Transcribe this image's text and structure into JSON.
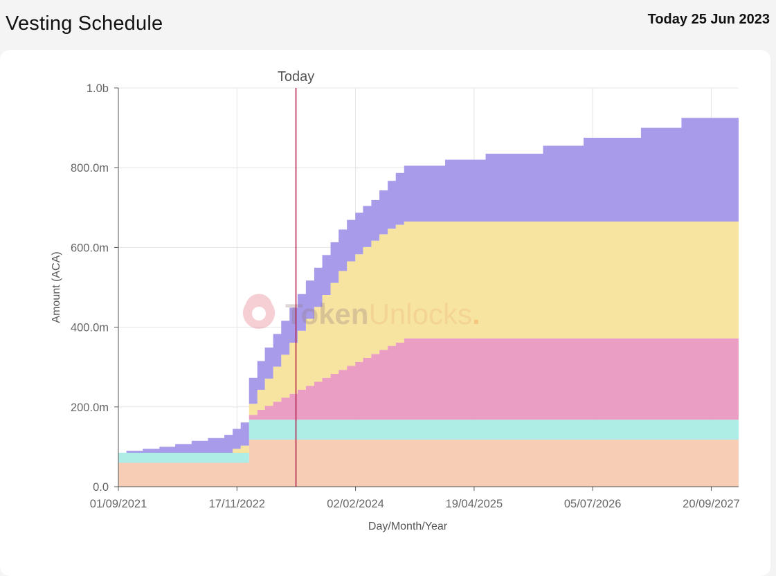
{
  "header": {
    "title": "Vesting Schedule",
    "today_prefix": "Today",
    "today_date": "25 Jun 2023"
  },
  "watermark": {
    "part1": "Token",
    "part2": "Unlocks",
    "dot": "."
  },
  "chart_data": {
    "type": "area",
    "stacked": true,
    "step": true,
    "title": "",
    "xlabel": "Day/Month/Year",
    "ylabel": "Amount (ACA)",
    "x_axis_type": "date",
    "xlim": [
      "2021-09-01",
      "2027-12-31"
    ],
    "ylim": [
      0,
      1000000000
    ],
    "x_ticks": [
      {
        "date": "2021-09-01",
        "label": "01/09/2021"
      },
      {
        "date": "2022-11-17",
        "label": "17/11/2022"
      },
      {
        "date": "2024-02-02",
        "label": "02/02/2024"
      },
      {
        "date": "2025-04-19",
        "label": "19/04/2025"
      },
      {
        "date": "2026-07-05",
        "label": "05/07/2026"
      },
      {
        "date": "2027-09-20",
        "label": "20/09/2027"
      }
    ],
    "y_ticks": [
      {
        "value": 0,
        "label": "0.0"
      },
      {
        "value": 200000000,
        "label": "200.0m"
      },
      {
        "value": 400000000,
        "label": "400.0m"
      },
      {
        "value": 600000000,
        "label": "600.0m"
      },
      {
        "value": 800000000,
        "label": "800.0m"
      },
      {
        "value": 1000000000,
        "label": "1.0b"
      }
    ],
    "grid": true,
    "marker": {
      "date": "2023-06-25",
      "label": "Today",
      "color": "#b01846"
    },
    "series": [
      {
        "color": "#f8cdb5",
        "points": [
          [
            "2021-09-01",
            60000000
          ],
          [
            "2023-01-01",
            118000000
          ],
          [
            "2027-12-31",
            118000000
          ]
        ]
      },
      {
        "color": "#aeece6",
        "points": [
          [
            "2021-09-01",
            25000000
          ],
          [
            "2023-01-01",
            50000000
          ],
          [
            "2027-12-31",
            50000000
          ]
        ]
      },
      {
        "color": "#eb9ec4",
        "points": [
          [
            "2021-09-01",
            0
          ],
          [
            "2022-12-01",
            0
          ],
          [
            "2023-01-01",
            12000000
          ],
          [
            "2023-02-01",
            25000000
          ],
          [
            "2023-03-01",
            35000000
          ],
          [
            "2023-04-01",
            45000000
          ],
          [
            "2023-05-01",
            55000000
          ],
          [
            "2023-06-01",
            65000000
          ],
          [
            "2023-07-01",
            75000000
          ],
          [
            "2023-08-01",
            85000000
          ],
          [
            "2023-09-01",
            95000000
          ],
          [
            "2023-10-01",
            105000000
          ],
          [
            "2023-11-01",
            115000000
          ],
          [
            "2023-12-01",
            125000000
          ],
          [
            "2024-01-01",
            135000000
          ],
          [
            "2024-02-01",
            145000000
          ],
          [
            "2024-03-01",
            155000000
          ],
          [
            "2024-04-01",
            165000000
          ],
          [
            "2024-05-01",
            175000000
          ],
          [
            "2024-06-01",
            185000000
          ],
          [
            "2024-07-01",
            193000000
          ],
          [
            "2024-08-01",
            204000000
          ],
          [
            "2027-12-31",
            204000000
          ]
        ]
      },
      {
        "color": "#f6e4a0",
        "points": [
          [
            "2021-09-01",
            0
          ],
          [
            "2022-10-01",
            0
          ],
          [
            "2022-11-01",
            10000000
          ],
          [
            "2022-12-01",
            18000000
          ],
          [
            "2023-01-01",
            28000000
          ],
          [
            "2023-02-01",
            50000000
          ],
          [
            "2023-03-01",
            68000000
          ],
          [
            "2023-04-01",
            88000000
          ],
          [
            "2023-05-01",
            108000000
          ],
          [
            "2023-06-01",
            128000000
          ],
          [
            "2023-07-01",
            148000000
          ],
          [
            "2023-08-01",
            168000000
          ],
          [
            "2023-09-01",
            188000000
          ],
          [
            "2023-10-01",
            208000000
          ],
          [
            "2023-11-01",
            228000000
          ],
          [
            "2023-12-01",
            248000000
          ],
          [
            "2024-01-01",
            262000000
          ],
          [
            "2024-02-01",
            270000000
          ],
          [
            "2024-03-01",
            278000000
          ],
          [
            "2024-04-01",
            284000000
          ],
          [
            "2024-05-01",
            290000000
          ],
          [
            "2024-06-01",
            294000000
          ],
          [
            "2024-07-01",
            296000000
          ],
          [
            "2024-08-01",
            293000000
          ],
          [
            "2027-12-31",
            293000000
          ]
        ]
      },
      {
        "color": "#a79bea",
        "points": [
          [
            "2021-09-01",
            0
          ],
          [
            "2021-10-01",
            5000000
          ],
          [
            "2021-12-01",
            10000000
          ],
          [
            "2022-02-01",
            15000000
          ],
          [
            "2022-04-01",
            22000000
          ],
          [
            "2022-06-01",
            30000000
          ],
          [
            "2022-08-01",
            37000000
          ],
          [
            "2022-10-01",
            45000000
          ],
          [
            "2022-11-01",
            50000000
          ],
          [
            "2022-12-01",
            58000000
          ],
          [
            "2023-01-01",
            65000000
          ],
          [
            "2023-02-01",
            72000000
          ],
          [
            "2023-03-01",
            78000000
          ],
          [
            "2023-04-01",
            82000000
          ],
          [
            "2023-05-01",
            85000000
          ],
          [
            "2023-06-01",
            88000000
          ],
          [
            "2023-07-01",
            92000000
          ],
          [
            "2023-08-01",
            96000000
          ],
          [
            "2023-09-01",
            98000000
          ],
          [
            "2023-10-01",
            100000000
          ],
          [
            "2023-11-01",
            102000000
          ],
          [
            "2023-12-01",
            104000000
          ],
          [
            "2024-01-01",
            104000000
          ],
          [
            "2024-02-01",
            104000000
          ],
          [
            "2024-03-01",
            103000000
          ],
          [
            "2024-04-01",
            102000000
          ],
          [
            "2024-05-01",
            110000000
          ],
          [
            "2024-06-01",
            120000000
          ],
          [
            "2024-07-01",
            130000000
          ],
          [
            "2024-08-01",
            140000000
          ],
          [
            "2025-01-01",
            155000000
          ],
          [
            "2025-06-01",
            170000000
          ],
          [
            "2026-01-01",
            190000000
          ],
          [
            "2026-06-01",
            210000000
          ],
          [
            "2027-01-01",
            235000000
          ],
          [
            "2027-06-01",
            260000000
          ],
          [
            "2027-12-31",
            335000000
          ]
        ]
      }
    ]
  }
}
